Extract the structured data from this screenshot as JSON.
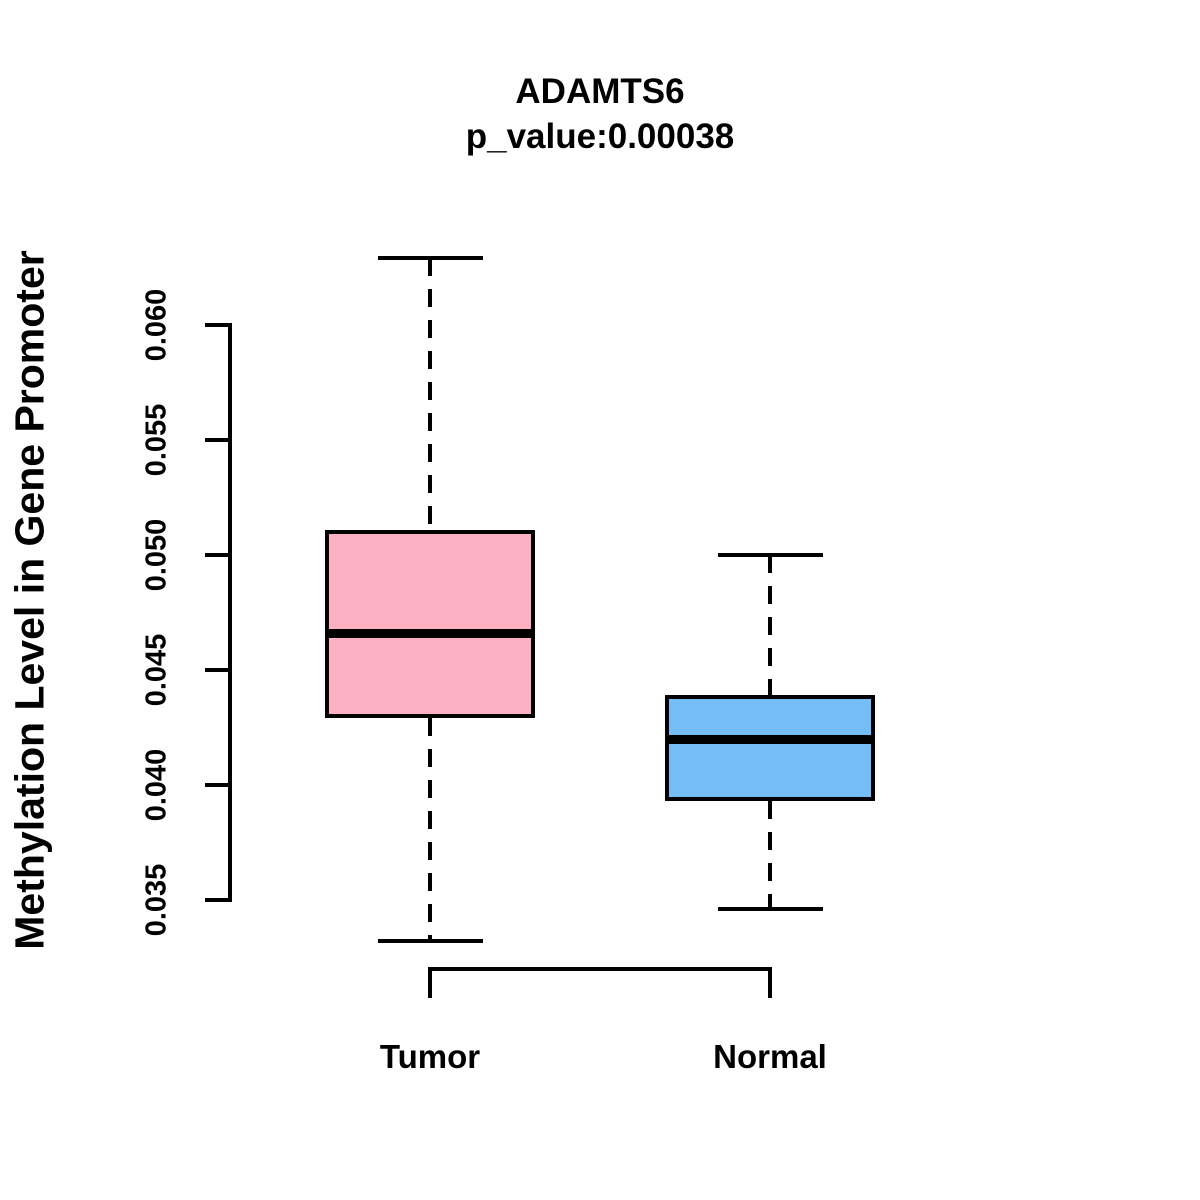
{
  "background": "#FFFFFF",
  "chart_data": {
    "type": "boxplot",
    "title": "ADAMTS6",
    "subtitle": "p_value:0.00038",
    "gene": "ADAMTS6",
    "p_value": 0.00038,
    "xlabel": "",
    "ylabel": "Methylation Level in Gene Promoter",
    "yticks": [
      0.035,
      0.04,
      0.045,
      0.05,
      0.055,
      0.06
    ],
    "ytick_labels": [
      "0.035",
      "0.040",
      "0.045",
      "0.050",
      "0.055",
      "0.060"
    ],
    "ylim": [
      0.033,
      0.063
    ],
    "grid": false,
    "legend": "none",
    "categories": [
      "Tumor",
      "Normal"
    ],
    "groups": [
      {
        "label": "Tumor",
        "fill_color": "#FCB1C3",
        "stroke_color": "#000000",
        "whisker_low": 0.0332,
        "q1": 0.0429,
        "median": 0.0466,
        "q3": 0.0511,
        "whisker_high": 0.0629
      },
      {
        "label": "Normal",
        "fill_color": "#74BDF6",
        "stroke_color": "#000000",
        "whisker_low": 0.0346,
        "q1": 0.0393,
        "median": 0.042,
        "q3": 0.0439,
        "whisker_high": 0.05
      }
    ]
  }
}
